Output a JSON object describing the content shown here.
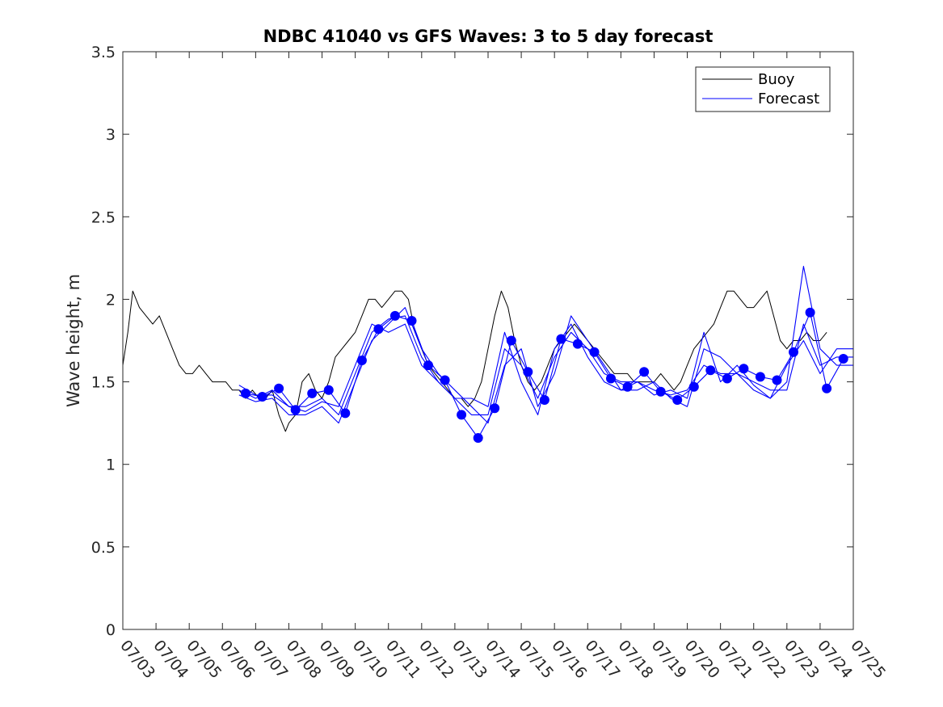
{
  "chart_data": {
    "type": "line",
    "title": "NDBC 41040 vs GFS Waves: 3 to 5 day forecast",
    "xlabel": "",
    "ylabel": "Wave height, m",
    "xlim": [
      "07/03",
      "07/25"
    ],
    "ylim": [
      0,
      3.5
    ],
    "yticks": [
      "0",
      "0.5",
      "1",
      "1.5",
      "2",
      "2.5",
      "3",
      "3.5"
    ],
    "xticks": [
      "07/03",
      "07/04",
      "07/05",
      "07/06",
      "07/07",
      "07/08",
      "07/09",
      "07/10",
      "07/11",
      "07/12",
      "07/13",
      "07/14",
      "07/15",
      "07/16",
      "07/17",
      "07/18",
      "07/19",
      "07/20",
      "07/21",
      "07/22",
      "07/23",
      "07/24",
      "07/25"
    ],
    "legend": {
      "placement": "top-right",
      "entries": [
        {
          "label": "Buoy",
          "color": "#000000"
        },
        {
          "label": "Forecast",
          "color": "#0000ff"
        }
      ]
    },
    "colors": {
      "buoy": "#000000",
      "forecast": "#0000ff",
      "axes": "#262626"
    },
    "series": [
      {
        "name": "Buoy",
        "x": [
          3.0,
          3.15,
          3.3,
          3.5,
          3.7,
          3.9,
          4.1,
          4.3,
          4.5,
          4.7,
          4.9,
          5.1,
          5.3,
          5.5,
          5.7,
          5.9,
          6.1,
          6.3,
          6.5,
          6.7,
          6.9,
          7.1,
          7.3,
          7.5,
          7.7,
          7.9,
          8.0,
          8.2,
          8.4,
          8.6,
          8.8,
          9.0,
          9.2,
          9.4,
          9.6,
          9.8,
          10.0,
          10.2,
          10.4,
          10.6,
          10.8,
          11.0,
          11.2,
          11.4,
          11.6,
          11.8,
          12.0,
          12.2,
          12.4,
          12.6,
          12.8,
          13.0,
          13.2,
          13.4,
          13.6,
          13.8,
          14.0,
          14.2,
          14.4,
          14.6,
          14.8,
          15.0,
          15.2,
          15.4,
          15.6,
          15.8,
          16.0,
          16.2,
          16.4,
          16.6,
          16.8,
          17.0,
          17.2,
          17.4,
          17.6,
          17.8,
          18.0,
          18.2,
          18.4,
          18.6,
          18.8,
          19.0,
          19.2,
          19.4,
          19.6,
          19.8,
          20.0,
          20.2,
          20.4,
          20.6,
          20.8,
          21.0,
          21.2,
          21.4,
          21.6,
          21.8,
          22.0,
          22.2,
          22.4,
          22.6,
          22.8,
          23.0,
          23.2,
          23.4,
          23.6,
          23.8,
          24.0,
          24.2
        ],
        "values": [
          1.6,
          1.8,
          2.05,
          1.95,
          1.9,
          1.85,
          1.9,
          1.8,
          1.7,
          1.6,
          1.55,
          1.55,
          1.6,
          1.55,
          1.5,
          1.5,
          1.5,
          1.45,
          1.45,
          1.4,
          1.45,
          1.4,
          1.4,
          1.45,
          1.3,
          1.2,
          1.25,
          1.3,
          1.5,
          1.55,
          1.45,
          1.4,
          1.5,
          1.65,
          1.7,
          1.75,
          1.8,
          1.9,
          2.0,
          2.0,
          1.95,
          2.0,
          2.05,
          2.05,
          2.0,
          1.8,
          1.7,
          1.6,
          1.55,
          1.5,
          1.45,
          1.4,
          1.4,
          1.35,
          1.4,
          1.5,
          1.7,
          1.9,
          2.05,
          1.95,
          1.75,
          1.6,
          1.5,
          1.45,
          1.5,
          1.6,
          1.7,
          1.75,
          1.8,
          1.85,
          1.8,
          1.75,
          1.7,
          1.65,
          1.6,
          1.55,
          1.55,
          1.55,
          1.5,
          1.5,
          1.5,
          1.5,
          1.55,
          1.5,
          1.45,
          1.5,
          1.6,
          1.7,
          1.75,
          1.8,
          1.85,
          1.95,
          2.05,
          2.05,
          2.0,
          1.95,
          1.95,
          2.0,
          2.05,
          1.9,
          1.75,
          1.7,
          1.75,
          1.75,
          1.8,
          1.75,
          1.75,
          1.8
        ]
      },
      {
        "name": "Forecast",
        "x": [
          6.5,
          7.0,
          7.5,
          8.0,
          8.5,
          9.0,
          9.5,
          10.0,
          10.5,
          11.0,
          11.5,
          12.0,
          12.5,
          13.0,
          13.5,
          14.0,
          14.5,
          15.0,
          15.5,
          16.0,
          16.5,
          17.0,
          17.5,
          18.0,
          18.5,
          19.0,
          19.5,
          20.0,
          20.5,
          21.0,
          21.5,
          22.0,
          22.5,
          23.0,
          23.5,
          24.0,
          24.5,
          25.0
        ],
        "values": [
          1.45,
          1.4,
          1.45,
          1.35,
          1.35,
          1.4,
          1.3,
          1.55,
          1.8,
          1.88,
          1.9,
          1.65,
          1.5,
          1.4,
          1.3,
          1.3,
          1.7,
          1.6,
          1.4,
          1.65,
          1.8,
          1.7,
          1.55,
          1.5,
          1.5,
          1.45,
          1.42,
          1.45,
          1.6,
          1.55,
          1.55,
          1.5,
          1.45,
          1.45,
          1.85,
          1.6,
          1.65,
          1.65
        ]
      },
      {
        "name": "Forecast",
        "x": [
          6.5,
          7.0,
          7.5,
          8.0,
          8.5,
          9.0,
          9.5,
          10.0,
          10.5,
          11.0,
          11.5,
          12.0,
          12.5,
          13.0,
          13.5,
          14.0,
          14.5,
          15.0,
          15.5,
          16.0,
          16.5,
          17.0,
          17.5,
          18.0,
          18.5,
          19.0,
          19.5,
          20.0,
          20.5,
          21.0,
          21.5,
          22.0,
          22.5,
          23.0,
          23.5,
          24.0,
          24.5,
          25.0
        ],
        "values": [
          1.42,
          1.38,
          1.4,
          1.3,
          1.3,
          1.35,
          1.25,
          1.5,
          1.75,
          1.85,
          1.95,
          1.7,
          1.55,
          1.45,
          1.35,
          1.25,
          1.6,
          1.7,
          1.35,
          1.55,
          1.9,
          1.75,
          1.6,
          1.45,
          1.45,
          1.5,
          1.4,
          1.35,
          1.7,
          1.65,
          1.55,
          1.45,
          1.4,
          1.5,
          2.2,
          1.7,
          1.6,
          1.6
        ]
      },
      {
        "name": "Forecast",
        "x": [
          6.5,
          7.0,
          7.5,
          8.0,
          8.5,
          9.0,
          9.5,
          10.0,
          10.5,
          11.0,
          11.5,
          12.0,
          12.5,
          13.0,
          13.5,
          14.0,
          14.5,
          15.0,
          15.5,
          16.0,
          16.5,
          17.0,
          17.5,
          18.0,
          18.5,
          19.0,
          19.5,
          20.0,
          20.5,
          21.0,
          21.5,
          22.0,
          22.5,
          23.0,
          23.5,
          24.0,
          24.5,
          25.0
        ],
        "values": [
          1.48,
          1.42,
          1.42,
          1.35,
          1.32,
          1.38,
          1.35,
          1.6,
          1.85,
          1.8,
          1.85,
          1.6,
          1.5,
          1.4,
          1.4,
          1.35,
          1.8,
          1.5,
          1.3,
          1.7,
          1.85,
          1.65,
          1.5,
          1.45,
          1.5,
          1.42,
          1.45,
          1.4,
          1.8,
          1.5,
          1.6,
          1.48,
          1.4,
          1.6,
          1.75,
          1.55,
          1.7,
          1.7
        ]
      },
      {
        "name": "Forecast",
        "x": [
          6.7,
          7.2,
          7.7,
          8.2,
          8.7,
          9.2,
          9.7,
          10.2,
          10.7,
          11.2,
          11.7,
          12.2,
          12.7,
          13.2,
          13.7,
          14.2,
          14.7,
          15.2,
          15.7,
          16.2,
          16.7,
          17.2,
          17.7,
          18.2,
          18.7,
          19.2,
          19.7,
          20.2,
          20.7,
          21.2,
          21.7,
          22.2,
          22.7,
          23.2,
          23.7,
          24.2,
          24.7
        ],
        "values": [
          1.43,
          1.41,
          1.46,
          1.33,
          1.43,
          1.45,
          1.31,
          1.63,
          1.82,
          1.9,
          1.87,
          1.6,
          1.51,
          1.3,
          1.16,
          1.34,
          1.75,
          1.56,
          1.39,
          1.76,
          1.73,
          1.68,
          1.52,
          1.47,
          1.56,
          1.44,
          1.39,
          1.47,
          1.57,
          1.52,
          1.58,
          1.53,
          1.51,
          1.68,
          1.92,
          1.46,
          1.64
        ]
      }
    ],
    "forecast_points": {
      "x": [
        6.7,
        7.2,
        7.7,
        8.2,
        8.7,
        9.2,
        9.7,
        10.2,
        10.7,
        11.2,
        11.7,
        12.2,
        12.7,
        13.2,
        13.7,
        14.2,
        14.7,
        15.2,
        15.7,
        16.2,
        16.7,
        17.2,
        17.7,
        18.2,
        18.7,
        19.2,
        19.7,
        20.2,
        20.7,
        21.2,
        21.7,
        22.2,
        22.7,
        23.2,
        23.7,
        24.2,
        24.7
      ],
      "values": [
        1.43,
        1.41,
        1.46,
        1.33,
        1.43,
        1.45,
        1.31,
        1.63,
        1.82,
        1.9,
        1.87,
        1.6,
        1.51,
        1.3,
        1.16,
        1.34,
        1.75,
        1.56,
        1.39,
        1.76,
        1.73,
        1.68,
        1.52,
        1.47,
        1.56,
        1.44,
        1.39,
        1.47,
        1.57,
        1.52,
        1.58,
        1.53,
        1.51,
        1.68,
        1.92,
        1.46,
        1.64
      ]
    }
  }
}
